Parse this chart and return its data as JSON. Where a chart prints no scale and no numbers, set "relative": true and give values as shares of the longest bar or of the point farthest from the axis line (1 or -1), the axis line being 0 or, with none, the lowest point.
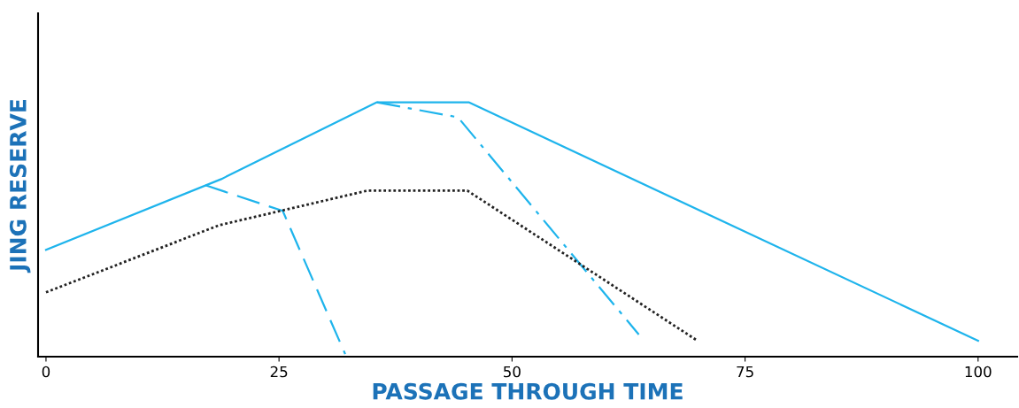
{
  "chart_data": {
    "type": "line",
    "xlabel": "PASSAGE THROUGH TIME",
    "ylabel": "JING RESERVE",
    "relative": true,
    "xlim": [
      -0.85,
      104.2
    ],
    "xticks": [
      0,
      25,
      50,
      75,
      100
    ],
    "grid": false,
    "legend": false,
    "marker": "none",
    "series": [
      {
        "color": "#1eb4ec",
        "line_style": "solid",
        "x": [
          0,
          18.8,
          35.5,
          45.35,
          100
        ],
        "values": [
          0.42,
          0.698,
          1.0,
          1.0,
          0.0625
        ]
      },
      {
        "color": "#1eb4ec",
        "line_style": "dashed",
        "x": [
          17.1,
          25.4,
          32.1
        ],
        "values": [
          0.674,
          0.573,
          0.01
        ]
      },
      {
        "color": "#1eb4ec",
        "line_style": "dashdot",
        "x": [
          35.5,
          44.2,
          63.6
        ],
        "values": [
          1.0,
          0.941,
          0.087
        ]
      },
      {
        "color": "#222222",
        "line_style": "dotted",
        "x": [
          0,
          18.6,
          34.5,
          45.2,
          69.9
        ],
        "values": [
          0.253,
          0.517,
          0.653,
          0.653,
          0.0625
        ]
      }
    ]
  }
}
